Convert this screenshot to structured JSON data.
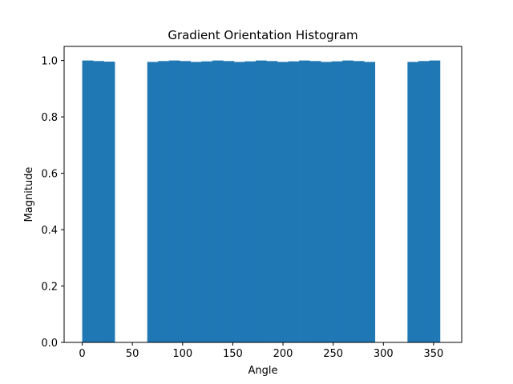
{
  "chart_data": {
    "type": "bar",
    "title": "Gradient Orientation Histogram",
    "xlabel": "Angle",
    "ylabel": "Magnitude",
    "xlim": [
      -18,
      378
    ],
    "ylim": [
      0,
      1.05
    ],
    "grid": false,
    "bar_color": "#1f77b4",
    "bin_width": 10.8,
    "x_ticks": [
      {
        "value": 0,
        "label": "0"
      },
      {
        "value": 50,
        "label": "50"
      },
      {
        "value": 100,
        "label": "100"
      },
      {
        "value": 150,
        "label": "150"
      },
      {
        "value": 200,
        "label": "200"
      },
      {
        "value": 250,
        "label": "250"
      },
      {
        "value": 300,
        "label": "300"
      },
      {
        "value": 350,
        "label": "350"
      }
    ],
    "y_ticks": [
      {
        "value": 0.0,
        "label": "0.0"
      },
      {
        "value": 0.2,
        "label": "0.2"
      },
      {
        "value": 0.4,
        "label": "0.4"
      },
      {
        "value": 0.6,
        "label": "0.6"
      },
      {
        "value": 0.8,
        "label": "0.8"
      },
      {
        "value": 1.0,
        "label": "1.0"
      }
    ],
    "bins": [
      {
        "x": 0.0,
        "value": 1.0
      },
      {
        "x": 10.8,
        "value": 0.998
      },
      {
        "x": 21.6,
        "value": 0.996
      },
      {
        "x": 32.4,
        "value": 0
      },
      {
        "x": 43.2,
        "value": 0
      },
      {
        "x": 54.0,
        "value": 0
      },
      {
        "x": 64.8,
        "value": 0.995
      },
      {
        "x": 75.6,
        "value": 0.998
      },
      {
        "x": 86.4,
        "value": 1.0
      },
      {
        "x": 97.2,
        "value": 0.998
      },
      {
        "x": 108.0,
        "value": 0.995
      },
      {
        "x": 118.8,
        "value": 0.997
      },
      {
        "x": 129.6,
        "value": 1.0
      },
      {
        "x": 140.4,
        "value": 0.998
      },
      {
        "x": 151.2,
        "value": 0.995
      },
      {
        "x": 162.0,
        "value": 0.997
      },
      {
        "x": 172.8,
        "value": 1.0
      },
      {
        "x": 183.6,
        "value": 0.998
      },
      {
        "x": 194.4,
        "value": 0.995
      },
      {
        "x": 205.2,
        "value": 0.997
      },
      {
        "x": 216.0,
        "value": 1.0
      },
      {
        "x": 226.8,
        "value": 0.998
      },
      {
        "x": 237.6,
        "value": 0.995
      },
      {
        "x": 248.4,
        "value": 0.997
      },
      {
        "x": 259.2,
        "value": 1.0
      },
      {
        "x": 270.0,
        "value": 0.998
      },
      {
        "x": 280.8,
        "value": 0.995
      },
      {
        "x": 291.6,
        "value": 0
      },
      {
        "x": 302.4,
        "value": 0
      },
      {
        "x": 313.2,
        "value": 0
      },
      {
        "x": 324.0,
        "value": 0.995
      },
      {
        "x": 334.8,
        "value": 0.998
      },
      {
        "x": 345.6,
        "value": 1.0
      }
    ]
  }
}
